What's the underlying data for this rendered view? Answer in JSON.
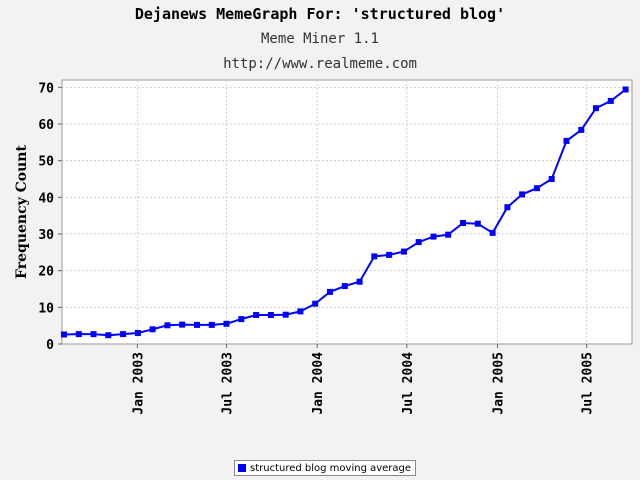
{
  "header": {
    "title": "Dejanews MemeGraph For: 'structured blog'",
    "subtitle": "Meme Miner 1.1",
    "url": "http://www.realmeme.com"
  },
  "colors": {
    "series": "#0000ff",
    "background": "#f2f2f2",
    "plot_background": "#ffffff",
    "grid": "#cfcfcf"
  },
  "chart_data": {
    "type": "line",
    "title": "Dejanews MemeGraph For: 'structured blog'",
    "subtitle": "Meme Miner 1.1",
    "xlabel": "",
    "ylabel": "Frequency Count",
    "ylim": [
      0,
      72
    ],
    "xlim": [
      "2002-08-01",
      "2005-10-01"
    ],
    "y_ticks": [
      "0",
      "10",
      "20",
      "30",
      "40",
      "50",
      "60",
      "70"
    ],
    "x_ticks": [
      "Jan 2003",
      "Jul 2003",
      "Jan 2004",
      "Jul 2004",
      "Jan 2005",
      "Jul 2005"
    ],
    "grid": true,
    "legend_position": "bottom",
    "series": [
      {
        "name": "structured blog moving average",
        "marker": "square",
        "x": [
          "2002-08-05",
          "2002-09-04",
          "2002-10-04",
          "2002-11-03",
          "2002-12-03",
          "2003-01-02",
          "2003-02-01",
          "2003-03-03",
          "2003-04-02",
          "2003-05-02",
          "2003-06-01",
          "2003-07-01",
          "2003-07-31",
          "2003-08-30",
          "2003-09-29",
          "2003-10-29",
          "2003-11-28",
          "2003-12-28",
          "2004-01-27",
          "2004-02-26",
          "2004-03-27",
          "2004-04-26",
          "2004-05-26",
          "2004-06-25",
          "2004-07-25",
          "2004-08-24",
          "2004-09-23",
          "2004-10-23",
          "2004-11-22",
          "2004-12-22",
          "2005-01-21",
          "2005-02-20",
          "2005-03-22",
          "2005-04-21",
          "2005-05-21",
          "2005-06-20",
          "2005-07-20",
          "2005-08-19",
          "2005-09-18"
        ],
        "values": [
          2.6,
          2.7,
          2.7,
          2.4,
          2.7,
          3.0,
          4.0,
          5.1,
          5.3,
          5.2,
          5.2,
          5.5,
          6.8,
          7.9,
          7.9,
          8.0,
          8.9,
          11.0,
          14.2,
          15.8,
          17.0,
          23.9,
          24.3,
          25.2,
          27.8,
          29.3,
          29.8,
          33.0,
          32.8,
          30.3,
          37.3,
          40.8,
          42.5,
          45.0,
          55.4,
          58.4,
          64.3,
          66.3,
          69.4
        ]
      }
    ]
  },
  "legend": {
    "label": "structured blog moving average"
  }
}
